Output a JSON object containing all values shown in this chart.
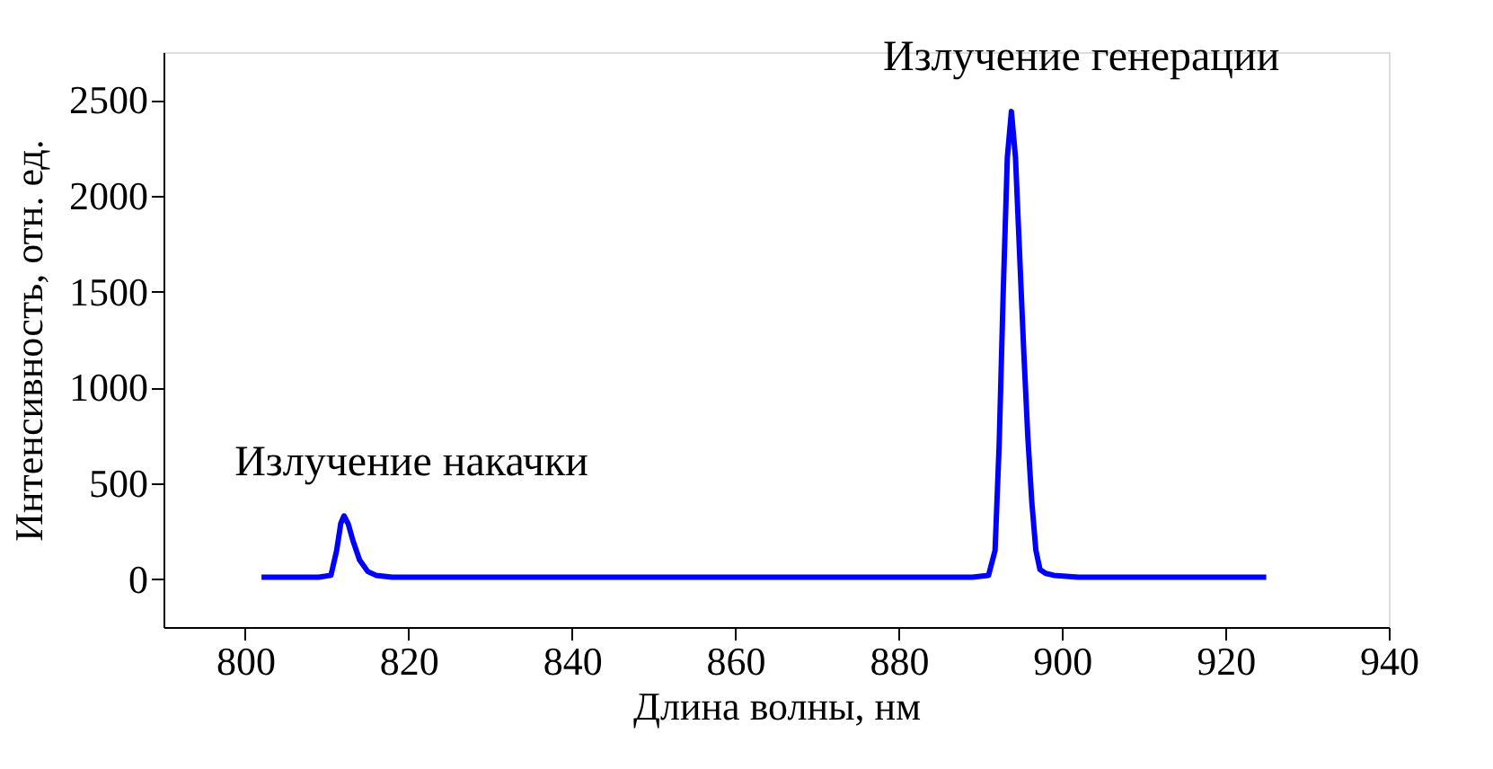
{
  "chart_data": {
    "type": "line",
    "xlabel": "Длина волны, нм",
    "ylabel": "Интенсивность, отн. ед.",
    "x": [
      802,
      806,
      809,
      810.5,
      811.2,
      811.7,
      812.1,
      812.6,
      813.2,
      814,
      815,
      816,
      818,
      825,
      835,
      845,
      855,
      865,
      875,
      885,
      889,
      891,
      891.8,
      892.3,
      892.8,
      893.3,
      893.8,
      894.3,
      894.8,
      895.3,
      895.8,
      896.3,
      896.8,
      897.3,
      898,
      899,
      902,
      910,
      918,
      925
    ],
    "series": [
      {
        "color": "#0000ff",
        "values": [
          10,
          10,
          10,
          20,
          150,
          290,
          330,
          290,
          200,
          100,
          40,
          20,
          10,
          10,
          10,
          10,
          10,
          10,
          10,
          10,
          10,
          20,
          150,
          700,
          1500,
          2200,
          2440,
          2200,
          1700,
          1200,
          750,
          400,
          150,
          50,
          30,
          20,
          10,
          10,
          10,
          10
        ]
      }
    ],
    "xlim": [
      790,
      940
    ],
    "xticks": [
      800,
      820,
      840,
      860,
      880,
      900,
      920,
      940
    ],
    "ylim": [
      -250,
      2750
    ],
    "yticks": [
      0,
      500,
      1000,
      1500,
      2000,
      2500
    ],
    "annotations": [
      {
        "text": "Излучение накачки",
        "x": 812,
        "y": 325
      },
      {
        "text": "Излучение генерации",
        "x": 894,
        "y": 2440
      }
    ],
    "grid": false,
    "marker": "none",
    "line_style": "solid"
  }
}
